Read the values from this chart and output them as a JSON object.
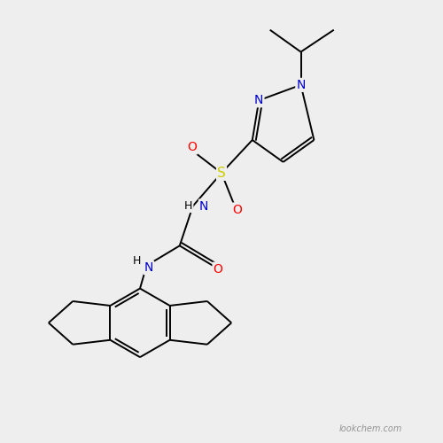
{
  "background_color": "#eeeeee",
  "bond_color": "#000000",
  "atom_colors": {
    "N": "#0000cc",
    "O": "#ff0000",
    "S": "#cccc00",
    "NH_teal": "#008080"
  },
  "font_size_atom": 10,
  "watermark": "lookchem.com"
}
